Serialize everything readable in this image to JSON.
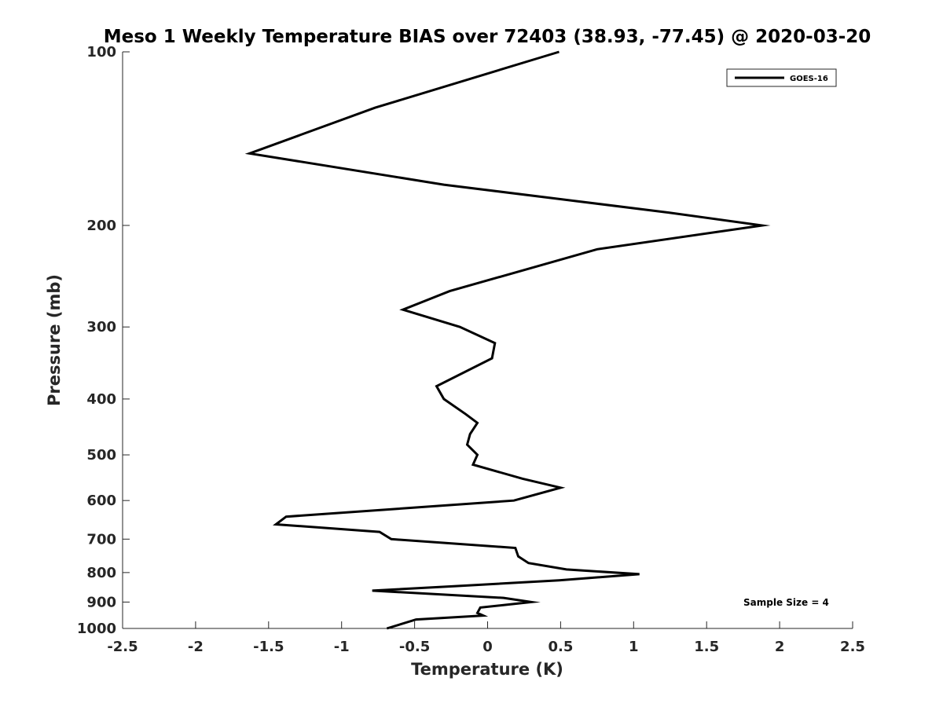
{
  "chart_data": {
    "type": "line",
    "title": "Meso 1 Weekly Temperature BIAS over 72403 (38.93, -77.45) @ 2020-03-20",
    "xlabel": "Temperature (K)",
    "ylabel": "Pressure (mb)",
    "xlim": [
      -2.5,
      2.5
    ],
    "ylim": [
      100,
      1000
    ],
    "y_scale": "log",
    "y_reversed": true,
    "x_ticks": [
      "-2.5",
      "-2",
      "-1.5",
      "-1",
      "-0.5",
      "0",
      "0.5",
      "1",
      "1.5",
      "2",
      "2.5"
    ],
    "x_tick_values": [
      -2.5,
      -2,
      -1.5,
      -1,
      -0.5,
      0,
      0.5,
      1,
      1.5,
      2,
      2.5
    ],
    "y_ticks": [
      "100",
      "200",
      "300",
      "400",
      "500",
      "600",
      "700",
      "800",
      "900",
      "1000"
    ],
    "y_tick_values": [
      100,
      200,
      300,
      400,
      500,
      600,
      700,
      800,
      900,
      1000
    ],
    "grid": false,
    "legend_position": "top-right",
    "annotation": "Sample Size = 4",
    "series": [
      {
        "name": "GOES-16",
        "color": "#000000",
        "points": [
          {
            "x": 0.49,
            "y": 100
          },
          {
            "x": -0.77,
            "y": 125
          },
          {
            "x": -1.63,
            "y": 150
          },
          {
            "x": -0.3,
            "y": 170
          },
          {
            "x": 1.24,
            "y": 190
          },
          {
            "x": 1.88,
            "y": 200
          },
          {
            "x": 0.75,
            "y": 220
          },
          {
            "x": -0.26,
            "y": 260
          },
          {
            "x": -0.58,
            "y": 280
          },
          {
            "x": -0.19,
            "y": 300
          },
          {
            "x": 0.05,
            "y": 320
          },
          {
            "x": 0.03,
            "y": 340
          },
          {
            "x": -0.35,
            "y": 380
          },
          {
            "x": -0.3,
            "y": 400
          },
          {
            "x": -0.15,
            "y": 425
          },
          {
            "x": -0.07,
            "y": 440
          },
          {
            "x": -0.12,
            "y": 460
          },
          {
            "x": -0.14,
            "y": 480
          },
          {
            "x": -0.07,
            "y": 500
          },
          {
            "x": -0.1,
            "y": 520
          },
          {
            "x": 0.24,
            "y": 550
          },
          {
            "x": 0.5,
            "y": 570
          },
          {
            "x": 0.18,
            "y": 600
          },
          {
            "x": -1.38,
            "y": 640
          },
          {
            "x": -1.45,
            "y": 660
          },
          {
            "x": -0.74,
            "y": 680
          },
          {
            "x": -0.66,
            "y": 700
          },
          {
            "x": 0.19,
            "y": 725
          },
          {
            "x": 0.21,
            "y": 750
          },
          {
            "x": 0.28,
            "y": 770
          },
          {
            "x": 0.54,
            "y": 790
          },
          {
            "x": 1.04,
            "y": 805
          },
          {
            "x": 0.49,
            "y": 825
          },
          {
            "x": -0.23,
            "y": 845
          },
          {
            "x": -0.79,
            "y": 860
          },
          {
            "x": 0.11,
            "y": 885
          },
          {
            "x": 0.3,
            "y": 900
          },
          {
            "x": -0.05,
            "y": 920
          },
          {
            "x": -0.07,
            "y": 940
          },
          {
            "x": -0.03,
            "y": 950
          },
          {
            "x": -0.49,
            "y": 965
          },
          {
            "x": -0.69,
            "y": 1000
          }
        ]
      }
    ]
  }
}
